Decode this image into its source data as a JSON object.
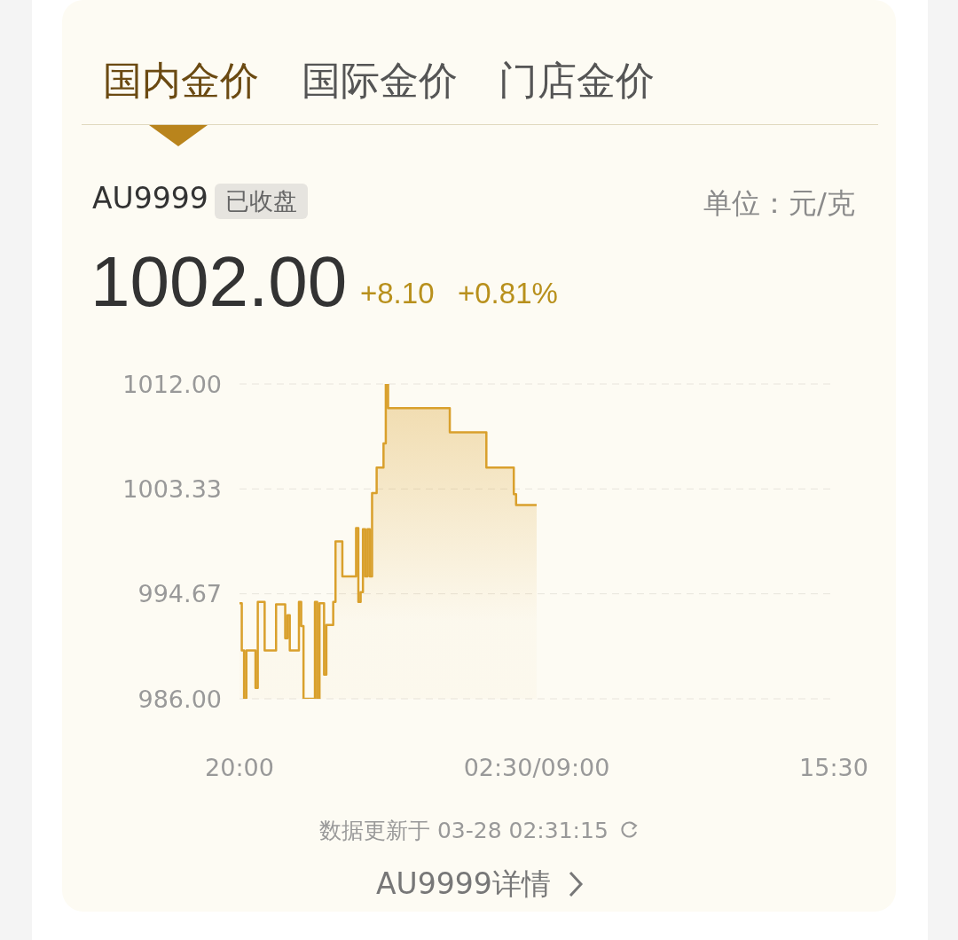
{
  "chart_data": {
    "type": "area",
    "title": "AU9999",
    "subtitle": "已收盘",
    "annotations": [
      "国内金价",
      "国际金价",
      "门店金价",
      "单位：元/克",
      "1002.00",
      "+8.10",
      "+0.81%",
      "数据更新于 03-28 02:31:15",
      "AU9999详情"
    ],
    "categories": [
      "20:00",
      null,
      null,
      null,
      null,
      null,
      null,
      null,
      null,
      null,
      null,
      null,
      null,
      null,
      null,
      null,
      null,
      null,
      null,
      null,
      null,
      null,
      null,
      null,
      null,
      null,
      null,
      null,
      null,
      null,
      null,
      null,
      null,
      null,
      null,
      null,
      null,
      null,
      null,
      null,
      null,
      null,
      null,
      null,
      null,
      null,
      null,
      null,
      null,
      null,
      null,
      null,
      null,
      null,
      null,
      null,
      null,
      null,
      null,
      null,
      null,
      null,
      null,
      null,
      null,
      null,
      null,
      null,
      null,
      null,
      null,
      null,
      null,
      null,
      null,
      null,
      null,
      null,
      null,
      null,
      null,
      null,
      null,
      null,
      null,
      null,
      null,
      null,
      null,
      null,
      null,
      null,
      null,
      null,
      null,
      null,
      null,
      null,
      null,
      null,
      null,
      null,
      null,
      null,
      null,
      null,
      null,
      null,
      null,
      null,
      null,
      null,
      null,
      null,
      null,
      null,
      null,
      null,
      null,
      null,
      null,
      null,
      null,
      null,
      null,
      null,
      null,
      null,
      null,
      null,
      "02:30/09:00",
      null,
      null,
      null,
      null,
      null,
      null,
      null,
      null,
      null,
      null,
      null,
      null,
      null,
      null,
      null,
      null,
      null,
      null,
      null,
      null,
      null,
      null,
      null,
      null,
      null,
      null,
      null,
      null,
      null,
      null,
      null,
      null,
      null,
      null,
      null,
      null,
      null,
      null,
      null,
      null,
      null,
      null,
      null,
      null,
      null,
      null,
      null,
      null,
      null,
      null,
      null,
      null,
      null,
      null,
      null,
      null,
      null,
      null,
      null,
      null,
      null,
      null,
      null,
      null,
      null,
      null,
      null,
      null,
      null,
      null,
      null,
      null,
      null,
      null,
      null,
      null,
      null,
      null,
      null,
      null,
      null,
      null,
      null,
      null,
      null,
      null,
      null,
      null,
      null,
      null,
      null,
      null,
      null,
      null,
      null,
      null,
      null,
      null,
      null,
      null,
      null,
      null,
      null,
      null,
      null,
      null,
      null,
      null,
      null,
      null,
      null,
      null,
      null,
      null,
      null,
      null,
      null,
      null,
      null,
      null,
      null,
      null,
      null,
      null,
      null,
      null,
      null,
      null,
      null,
      "15:30"
    ],
    "series": [
      {
        "color": "#d9a02c",
        "values": [
          993.9,
          990.0,
          986.0,
          990.0,
          990.0,
          990.0,
          990.0,
          986.9,
          994.0,
          994.0,
          994.0,
          990.0,
          990.0,
          990.0,
          990.0,
          990.0,
          993.8,
          993.8,
          993.8,
          993.8,
          991.0,
          992.9,
          990.0,
          990.0,
          990.0,
          990.0,
          994.0,
          992.0,
          986.0,
          986.0,
          986.0,
          986.0,
          986.0,
          994.0,
          986.0,
          993.9,
          993.9,
          988.0,
          992.1,
          992.1,
          992.1,
          994.0,
          999.0,
          999.0,
          999.0,
          996.1,
          996.1,
          996.1,
          996.1,
          996.1,
          996.1,
          1000.1,
          994.0,
          994.8,
          1000.0,
          996.1,
          1000.0,
          996.1,
          1003.0,
          1003.0,
          1005.1,
          1005.1,
          1005.1,
          1007.1,
          1012.0,
          1010.0,
          1010.0,
          1010.0,
          1010.0,
          1010.0,
          1010.0,
          1010.0,
          1010.0,
          1010.0,
          1010.0,
          1010.0,
          1010.0,
          1010.0,
          1010.0,
          1010.0,
          1010.0,
          1010.0,
          1010.0,
          1010.0,
          1010.0,
          1010.0,
          1010.0,
          1010.0,
          1010.0,
          1010.0,
          1010.0,
          1010.0,
          1008.0,
          1008.0,
          1008.0,
          1008.0,
          1008.0,
          1008.0,
          1008.0,
          1008.0,
          1008.0,
          1008.0,
          1008.0,
          1008.0,
          1008.0,
          1008.0,
          1008.0,
          1008.0,
          1005.1,
          1005.1,
          1005.1,
          1005.1,
          1005.1,
          1005.1,
          1005.1,
          1005.1,
          1005.1,
          1005.1,
          1005.1,
          1005.1,
          1002.9,
          1002.0,
          1002.0,
          1002.0,
          1002.0,
          1002.0,
          1002.0,
          1002.0,
          1002.0,
          1002.0,
          1002.0,
          null,
          null,
          null,
          null,
          null,
          null,
          null,
          null,
          null,
          null,
          null,
          null,
          null,
          null,
          null,
          null,
          null,
          null,
          null,
          null,
          null,
          null,
          null,
          null,
          null,
          null,
          null,
          null,
          null,
          null,
          null,
          null,
          null,
          null,
          null,
          null,
          null,
          null,
          null,
          null,
          null,
          null,
          null,
          null,
          null,
          null,
          null,
          null,
          null,
          null,
          null,
          null,
          null,
          null,
          null,
          null,
          null,
          null,
          null,
          null,
          null,
          null,
          null,
          null,
          null,
          null,
          null,
          null,
          null,
          null,
          null,
          null,
          null,
          null,
          null,
          null,
          null,
          null,
          null,
          null,
          null,
          null,
          null,
          null,
          null,
          null,
          null,
          null,
          null,
          null,
          null,
          null,
          null,
          null,
          null,
          null,
          null,
          null,
          null,
          null,
          null,
          null,
          null,
          null,
          null,
          null,
          null,
          null,
          null,
          null,
          null,
          null,
          null,
          null,
          null,
          null,
          null,
          null,
          null,
          null,
          null,
          null,
          null,
          null,
          null,
          null,
          null,
          null,
          null,
          null
        ]
      }
    ],
    "ylim": [
      986,
      1012
    ],
    "yticks": [
      {
        "value": 986,
        "label": "986.00"
      },
      {
        "value": 994.67,
        "label": "994.67"
      },
      {
        "value": 1003.33,
        "label": "1003.33"
      },
      {
        "value": 1012,
        "label": "1012.00"
      }
    ],
    "grid": "y"
  }
}
